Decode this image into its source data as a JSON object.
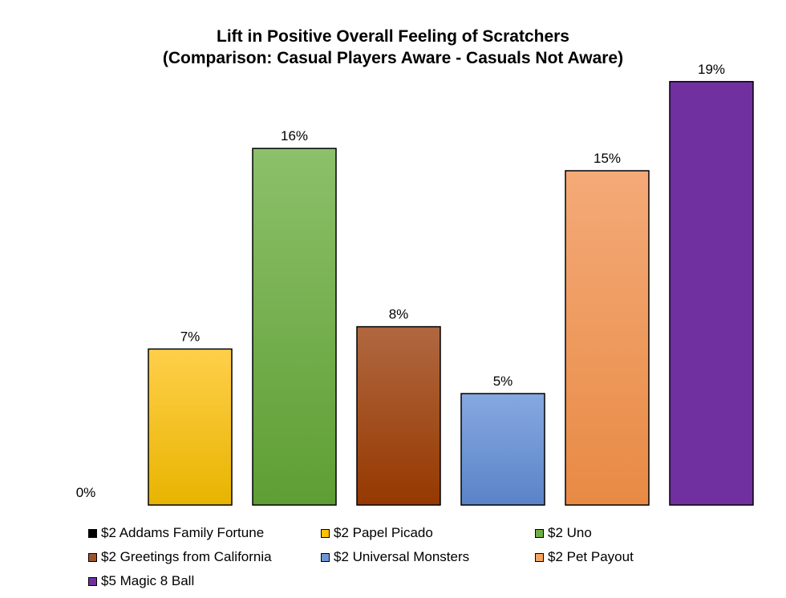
{
  "chart_data": {
    "type": "bar",
    "title": "Lift in Positive Overall Feeling of Scratchers",
    "subtitle": "(Comparison: Casual Players Aware - Casuals Not Aware)",
    "xlabel": "",
    "ylabel": "",
    "ylim": [
      0,
      20
    ],
    "grid": false,
    "legend_position": "bottom",
    "value_suffix": "%",
    "categories": [
      "$2 Addams Family Fortune",
      "$2 Papel Picado",
      "$2 Uno",
      "$2 Greetings from California",
      "$2 Universal Monsters",
      "$2 Pet Payout",
      "$5 Magic 8 Ball"
    ],
    "values": [
      0,
      7,
      16,
      8,
      5,
      15,
      19
    ],
    "data_labels": [
      "0%",
      "7%",
      "16%",
      "8%",
      "5%",
      "15%",
      "19%"
    ],
    "colors": [
      {
        "top": "#000000",
        "bottom": "#000000"
      },
      {
        "top": "#ffcf4a",
        "bottom": "#e8b400"
      },
      {
        "top": "#8cc06a",
        "bottom": "#5e9e33"
      },
      {
        "top": "#b06840",
        "bottom": "#963800"
      },
      {
        "top": "#86a8e0",
        "bottom": "#5a84c8"
      },
      {
        "top": "#f4aa78",
        "bottom": "#e88a44"
      },
      {
        "top": "#7030a0",
        "bottom": "#7030a0"
      }
    ],
    "swatch_colors": [
      "#000000",
      "#ffc000",
      "#70ad47",
      "#a0522d",
      "#6f95d6",
      "#f4a460",
      "#7030a0"
    ]
  }
}
